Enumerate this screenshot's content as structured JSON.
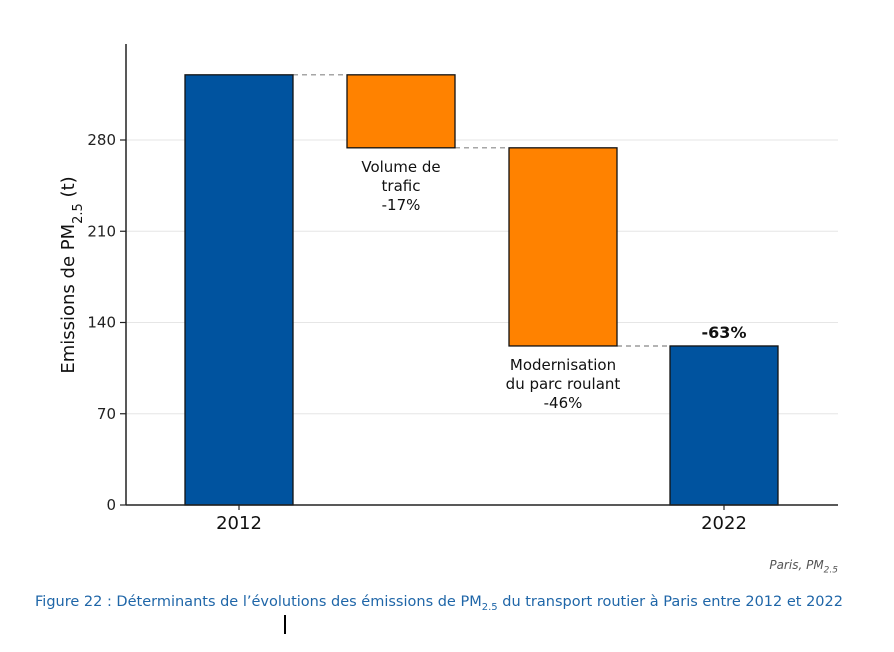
{
  "chart_data": {
    "type": "bar",
    "subtype": "waterfall",
    "ylabel_main": "Emissions de PM",
    "ylabel_sub": "2.5",
    "ylabel_unit": " (t)",
    "ylim": [
      0,
      350
    ],
    "yticks": [
      0,
      70,
      140,
      210,
      280
    ],
    "grid": true,
    "bars": [
      {
        "category": "2012",
        "kind": "total",
        "start": 0,
        "end": 330
      },
      {
        "category": "",
        "kind": "decrease",
        "start": 274,
        "end": 330,
        "label_lines": [
          "Volume de",
          "trafic",
          "-17%"
        ]
      },
      {
        "category": "",
        "kind": "decrease",
        "start": 122,
        "end": 274,
        "label_lines": [
          "Modernisation",
          "du parc roulant",
          "-46%"
        ]
      },
      {
        "category": "2022",
        "kind": "total",
        "start": 0,
        "end": 122,
        "label_lines": [
          "-63%"
        ]
      }
    ],
    "colors": {
      "total": "#00539f",
      "decrease": "#ff8200"
    }
  },
  "source": {
    "text": "Paris, PM",
    "sub": "2.5"
  },
  "caption": {
    "prefix": "Figure 22 : Déterminants de l’évolutions des émissions de PM",
    "sub": "2.5",
    "suffix": " du transport routier à Paris entre 2012 et 2022"
  }
}
